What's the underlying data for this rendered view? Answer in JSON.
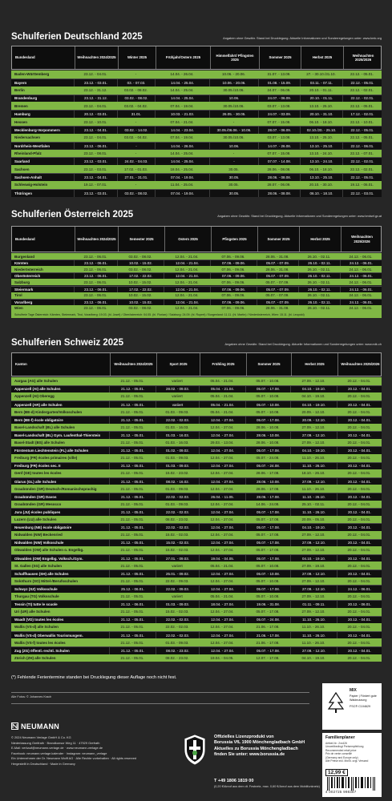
{
  "germany": {
    "title": "Schulferien Deutschland 2025",
    "note": "Angaben ohne Gewähr. Stand bei Drucklegung. Aktuelle Informationen und Sonderregelungen unter: www.kmk.org",
    "columns": [
      "Bundesland",
      "Weihnachten 2024/2025",
      "Winter 2025",
      "Frühjahr/Ostern 2025",
      "Himmelfahrt/ Pfingsten 2025",
      "Sommer 2025",
      "Herbst 2025",
      "Weihnachten 2025/2026"
    ],
    "rows": [
      [
        "Baden-Württemberg",
        "23.12. - 04.01.",
        "-",
        "14.04. - 26.04.",
        "10.06. - 20.06.",
        "31.07. - 13.09.",
        "27. - 30.10./31.10.",
        "22.12. - 05.01."
      ],
      [
        "Bayern",
        "23.12. - 03.01.",
        "03. - 07.03.",
        "14.04. - 25.04.",
        "10.06. - 20.06.",
        "01.08. - 15.09.",
        "03.11. - 07.11.",
        "22.12. - 05.01."
      ],
      [
        "Berlin",
        "23.12. - 31.12.",
        "03.02. - 08.02.",
        "14.04. - 25.04.",
        "30.05./10.06.",
        "24.07. - 06.09.",
        "20.10. - 01.11.",
        "22.12. - 02.01."
      ],
      [
        "Brandenburg",
        "23.12. - 31.12.",
        "03.02. - 08.02.",
        "14.04. - 25.04.",
        "10.06.",
        "24.07. - 06.09.",
        "20.10. - 01.11.",
        "22.12. - 02.01."
      ],
      [
        "Bremen",
        "23.12. - 04.01.",
        "03.02. - 04.02.",
        "07.04. - 19.04.",
        "30.05./10.06.",
        "03.07. - 13.08.",
        "13.10. - 25.10.",
        "22.12. - 05.01."
      ],
      [
        "Hamburg",
        "20.12. - 03.01.",
        "31.01.",
        "10.03. - 21.03.",
        "26.05. - 30.05.",
        "24.07. - 03.09.",
        "20.10. - 31.10.",
        "17.12. - 02.01."
      ],
      [
        "Hessen",
        "23.12. - 10.01.",
        "-",
        "07.04. - 21.04.",
        "-",
        "07.07. - 15.08.",
        "06.10. - 18.10.",
        "22.12. - 10.01."
      ],
      [
        "Mecklenburg-Vorpommern",
        "23.12. - 04.01.",
        "03.02. - 14.02.",
        "14.04. - 23.04.",
        "30.05./06.06. - 10.06.",
        "28.07. - 06.09.",
        "02.10./20. - 25.10.",
        "22.12. - 05.01."
      ],
      [
        "Niedersachsen",
        "23.12. - 04.01.",
        "03.02. - 04.02.",
        "07.04. - 19.04.",
        "30.05./10.06.",
        "03.07. - 13.08.",
        "13.10. - 25.10.",
        "22.12. - 05.01."
      ],
      [
        "Nordrhein-Westfalen",
        "23.12. - 06.01.",
        "-",
        "14.04. - 26.04.",
        "10.06.",
        "14.07. - 26.08.",
        "13.10. - 25.10.",
        "22.12. - 06.01."
      ],
      [
        "Rheinland-Pfalz",
        "23.12. - 08.01.",
        "-",
        "14.04. - 25.04.",
        "-",
        "07.07. - 15.08.",
        "13.10. - 24.10.",
        "22.12. - 07.01."
      ],
      [
        "Saarland",
        "23.12. - 03.01.",
        "24.02. - 04.03.",
        "14.04. - 25.04.",
        "-",
        "07.07. - 14.08.",
        "13.10. - 24.10.",
        "22.12. - 02.01."
      ],
      [
        "Sachsen",
        "23.12. - 03.01.",
        "17.02. - 01.03.",
        "18.04. - 25.04.",
        "30.05.",
        "28.06. - 08.08.",
        "06.10. - 18.10.",
        "22.12. - 02.01."
      ],
      [
        "Sachsen-Anhalt",
        "23.12. - 04.01.",
        "27.01. - 31.01.",
        "07.04. - 19.04.",
        "30.05.",
        "28.06. - 08.08.",
        "13.10. - 25.10.",
        "22.12. - 05.01."
      ],
      [
        "Schleswig-Holstein",
        "19.12. - 07.01.",
        "-",
        "11.04. - 25.04.",
        "30.05.",
        "28.07. - 06.09.",
        "20.10. - 30.10.",
        "19.12. - 06.01."
      ],
      [
        "Thüringen",
        "23.12. - 03.01.",
        "03.02. - 08.02.",
        "07.04. - 19.04.",
        "30.05.",
        "28.06. - 08.08.",
        "06.10. - 18.10.",
        "22.12. - 03.01."
      ]
    ]
  },
  "austria": {
    "title": "Schulferien Österreich 2025",
    "note": "Angaben ohne Gewähr. Stand bei Drucklegung. Aktuelle Informationen und Sonderregelungen unter: www.bmbwf.gv.at",
    "columns": [
      "Bundesland",
      "Weihnachten 2024/2025",
      "Semester 2025",
      "Ostern 2025",
      "Pfingsten 2025",
      "Sommer 2025",
      "Herbst 2025",
      "Weihnachten 2025/2026"
    ],
    "rows": [
      [
        "Burgenland",
        "23.12. - 06.01.",
        "03.02. - 08.02.",
        "12.04. - 21.04.",
        "07.06. - 09.06.",
        "28.06. - 31.08.",
        "26.10. - 02.11.",
        "24.12. - 06.01."
      ],
      [
        "Kärnten",
        "23.12. - 06.01.",
        "10.02. - 15.02.",
        "12.04. - 21.04.",
        "07.06. - 09.06.",
        "05.07. - 07.09.",
        "26.10. - 02.11.",
        "24.12. - 06.01."
      ],
      [
        "Niederösterreich",
        "23.12. - 06.01.",
        "03.02. - 08.02.",
        "12.04. - 21.04.",
        "07.06. - 09.06.",
        "28.06. - 31.08.",
        "26.10. - 02.11.",
        "24.12. - 06.01."
      ],
      [
        "Oberösterreich",
        "23.12. - 06.01.",
        "17.02. - 22.02.",
        "12.04. - 21.04.",
        "07.06. - 09.06.",
        "05.07. - 07.09.",
        "26.10. - 02.11.",
        "24.12. - 06.01."
      ],
      [
        "Salzburg",
        "23.12. - 06.01.",
        "10.02. - 15.02.",
        "12.04. - 21.04.",
        "07.06. - 09.06.",
        "05.07. - 07.09.",
        "26.10. - 02.11.",
        "24.12. - 06.01."
      ],
      [
        "Steiermark",
        "23.12. - 06.01.",
        "17.02. - 22.02.",
        "12.04. - 21.04.",
        "07.06. - 09.06.",
        "05.07. - 07.09.",
        "26.10. - 02.11.",
        "24.12. - 06.01."
      ],
      [
        "Tirol",
        "23.12. - 06.01.",
        "10.02. - 15.02.",
        "12.04. - 21.04.",
        "07.06. - 09.06.",
        "05.07. - 07.09.",
        "26.10. - 02.11.",
        "24.12. - 06.01."
      ],
      [
        "Vorarlberg",
        "23.12. - 06.01.",
        "10.02. - 15.02.",
        "12.04. - 21.04.",
        "07.06. - 09.06.",
        "05.07. - 07.09.",
        "26.10. - 02.11.",
        "24.12. - 06.01."
      ],
      [
        "Wien",
        "23.12. - 06.01.",
        "03.02. - 08.02.",
        "12.04. - 21.04.",
        "07.06. - 09.06.",
        "28.06. - 31.08.",
        "26.10. - 02.11.",
        "24.12. - 06.01."
      ]
    ],
    "holidays_note": "Schulfreie Tage Österreich: Kärnten, Steiermark, Tirol, Vorarlberg: 19.03. (hl. Josef) / Oberösterreich: 04.05. (hl. Florian) / Salzburg: 24.09. (hl. Rupert) / Burgenland: 11.11. (hl. Martin) / Niederösterreich, Wien: 15.11. (hl. Leopold)"
  },
  "switzerland": {
    "title": "Schulferien Schweiz 2025",
    "note": "Angaben ohne Gewähr. Stand bei Drucklegung. Aktuelle Informationen und Sonderregelungen unter: www.edk.ch",
    "columns": [
      "Kanton",
      "Weihnachten 2024/2025",
      "Sport 2025",
      "Frühling 2025",
      "Sommer 2025",
      "Herbst 2025",
      "Weihnachten 2025/2026"
    ],
    "rows": [
      [
        "Aargau (AG) alle Schulen",
        "21.12. - 05.01.",
        "variiert",
        "05.04. - 21.04.",
        "05.07. - 10.08.",
        "27.09. - 12.10.",
        "20.12. - 04.01."
      ],
      [
        "Appenzell (AI) alle Schulen",
        "21.12. - 05.01.",
        "28.02. - 09.03.",
        "05.04. - 21.04.",
        "05.07. - 17.08.",
        "04.10. - 19.10.",
        "20.12. - 04.01."
      ],
      [
        "Appenzell (AI) Oberegg",
        "21.12. - 05.01.",
        "variiert",
        "05.04. - 21.04.",
        "05.07. - 10.08.",
        "04.10. - 19.10.",
        "20.12. - 04.01."
      ],
      [
        "Appenzell (AR) alle Schulen",
        "21.12. - 05.01.",
        "variiert",
        "05.04. - 21.04.",
        "05.07. - 10.08.",
        "04.10. - 19.10.",
        "20.12. - 04.01."
      ],
      [
        "Bern (BE-d) Kindergarten/Volksschulen",
        "21.12. - 05.01.",
        "01.03. - 09.03.",
        "05.04. - 21.04.",
        "05.07. - 10.08.",
        "20.09. - 12.10.",
        "20.12. - 04.01."
      ],
      [
        "Bern (BE-f) école obligatoire",
        "21.12. - 05.01.",
        "22.02. - 02.03.",
        "12.04. - 27.04.",
        "05.07. - 17.08.",
        "20.09. - 12.10.",
        "20.12. - 04.01."
      ],
      [
        "Basel-Landschaft (BL) alle Schulen",
        "21.12. - 05.01.",
        "01.03. - 16.03.",
        "12.04. - 27.04.",
        "28.06. - 10.08.",
        "27.09. - 12.10.",
        "20.12. - 04.01."
      ],
      [
        "Basel-Landschaft (BL) Gym. Laufenthal-Thierstein",
        "21.12. - 05.01.",
        "01.03. - 16.03.",
        "12.04. - 27.04.",
        "28.06. - 10.08.",
        "27.09. - 12.10.",
        "20.12. - 04.01."
      ],
      [
        "Basel-Stadt (BS) alle Schulen",
        "21.12. - 05.01.",
        "01.03. - 16.03.",
        "29.03. - 13.04.",
        "28.06. - 10.08.",
        "27.09. - 12.10.",
        "20.12. - 04.01."
      ],
      [
        "Fürstentum Liechtenstein (FL) alle Schulen",
        "21.12. - 05.01.",
        "01.02. - 09.02.",
        "12.04. - 27.04.",
        "05.07. - 17.08.",
        "04.10. - 19.10.",
        "20.12. - 04.01."
      ],
      [
        "Freiburg (FR) écoles primaires (ville)",
        "21.12. - 05.01.",
        "01.03. - 09.03.",
        "12.04. - 27.04.",
        "05.07. - 24.08.",
        "11.10. - 26.10.",
        "20.12. - 04.01."
      ],
      [
        "Freiburg (FR) écoles sec. II",
        "21.12. - 05.01.",
        "01.03. - 09.03.",
        "12.04. - 27.04.",
        "05.07. - 24.08.",
        "11.10. - 26.10.",
        "20.12. - 04.01."
      ],
      [
        "Genf (GE) toutes les écoles",
        "21.12. - 05.01.",
        "15.02. - 23.02.",
        "12.04. - 27.04.",
        "28.06. - 17.08.",
        "18.10. - 26.10.",
        "20.12. - 04.01."
      ],
      [
        "Glarus (GL) alle Schulen",
        "21.12. - 05.01.",
        "08.02. - 16.02.",
        "12.04. - 27.04.",
        "28.06. - 10.08.",
        "27.09. - 12.10.",
        "20.12. - 04.01."
      ],
      [
        "Graubünden (GR) Deutsch-/Romanischsprachig",
        "21.12. - 05.01.",
        "01.03. - 09.03.",
        "12.04. - 27.04.",
        "28.06. - 17.08.",
        "11.10. - 26.10.",
        "20.12. - 04.01."
      ],
      [
        "Graubünden (GR) Davos",
        "21.12. - 05.01.",
        "22.02. - 02.03.",
        "26.04. - 11.05.",
        "28.06. - 17.08.",
        "11.10. - 26.10.",
        "20.12. - 04.01."
      ],
      [
        "Graubünden (GR) Mesocco",
        "21.12. - 05.01.",
        "01.03. - 09.03.",
        "12.04. - 27.04.",
        "14.06. - 24.08.",
        "25.10. - 02.11.",
        "20.12. - 04.01."
      ],
      [
        "Jura (JU) écoles publiques",
        "21.12. - 05.01.",
        "22.02. - 02.03.",
        "12.04. - 27.04.",
        "05.07. - 17.08.",
        "11.10. - 26.10.",
        "20.12. - 04.01."
      ],
      [
        "Luzern (LU) alle Schulen",
        "21.12. - 05.01.",
        "08.02. - 23.02.",
        "12.04. - 27.04.",
        "05.07. - 17.08.",
        "20.09. - 05.10.",
        "20.12. - 04.01."
      ],
      [
        "Neuenburg (NE) école obligatoire",
        "21.12. - 05.01.",
        "22.02. - 02.03.",
        "12.04. - 27.04.",
        "05.07. - 17.08.",
        "04.10. - 19.10.",
        "20.12. - 04.01."
      ],
      [
        "Nidwalden (NW) Beckenried",
        "21.12. - 05.01.",
        "15.02. - 02.03.",
        "12.04. - 27.04.",
        "05.07. - 17.08.",
        "27.09. - 12.10.",
        "20.12. - 04.01."
      ],
      [
        "Nidwalden (NW) Volksschule",
        "21.12. - 05.01.",
        "15.02. - 02.03.",
        "12.04. - 27.04.",
        "05.07. - 17.08.",
        "27.09. - 12.10.",
        "20.12. - 04.01."
      ],
      [
        "Obwalden (OW) alle Schulen o. Engelbg.",
        "21.12. - 05.01.",
        "15.02. - 02.03.",
        "12.04. - 27.04.",
        "05.07. - 17.08.",
        "27.09. - 12.10.",
        "20.12. - 04.01."
      ],
      [
        "Obwalden (OW) Engelbg. Volksch./Gym.",
        "21.12. - 05.01.",
        "27.01. - 09.03.",
        "19.04. - 04.05.",
        "05.07. - 17.08.",
        "04.10. - 19.10.",
        "20.12. - 04.01."
      ],
      [
        "St. Gallen (SG) alle Schulen",
        "21.12. - 05.01.",
        "variiert",
        "05.04. - 21.04.",
        "05.07. - 10.08.",
        "27.09. - 19.10.",
        "20.12. - 04.01."
      ],
      [
        "Schaffhausen (SH) alle Schulen",
        "21.12. - 05.01.",
        "25.01. - 09.02.",
        "12.04. - 27.04.",
        "05.07. - 10.08.",
        "27.09. - 12.10.",
        "20.12. - 04.01."
      ],
      [
        "Solothurn (SO) Mittel-/Berufsschulen",
        "21.12. - 05.01.",
        "22.02. - 09.03.",
        "12.04. - 27.04.",
        "05.07. - 10.08.",
        "27.09. - 12.10.",
        "20.12. - 04.01."
      ],
      [
        "Schwyz (SZ) Volksschule",
        "25.12. - 06.01.",
        "22.02. - 09.03.",
        "12.04. - 27.04.",
        "05.07. - 17.08.",
        "27.09. - 12.10.",
        "24.12. - 06.01."
      ],
      [
        "Thurgau (TG) Volksschule",
        "21.12. - 05.01.",
        "variiert",
        "05.04. - 21.04.",
        "05.07. - 10.08.",
        "27.09. - 12.10.",
        "20.12. - 04.01."
      ],
      [
        "Tessin (TI) tutte le scuole",
        "21.12. - 06.01.",
        "01.03. - 09.03.",
        "18.04. - 27.04.",
        "19.06. - 31.08.",
        "01.11. - 09.11.",
        "20.12. - 06.01."
      ],
      [
        "Uri (UR) alle Schulen",
        "21.12. - 05.01.",
        "15.02. - 02.03.",
        "12.04. - 27.04.",
        "05.07. - 17.08.",
        "27.09. - 12.10.",
        "20.12. - 04.01."
      ],
      [
        "Waadt (VD) toutes les écoles",
        "21.12. - 05.01.",
        "22.02. - 02.03.",
        "12.04. - 27.04.",
        "05.07. - 24.08.",
        "11.10. - 26.10.",
        "20.12. - 04.01."
      ],
      [
        "Wallis (VS-d) alle Schulen",
        "21.12. - 05.01.",
        "22.02. - 02.03.",
        "12.04. - 27.04.",
        "21.06. - 17.08.",
        "11.10. - 26.10.",
        "20.12. - 04.01."
      ],
      [
        "Wallis (VS-d) Oberwallis Tourismusgem.",
        "21.12. - 05.01.",
        "22.02. - 02.03.",
        "12.04. - 27.04.",
        "21.06. - 17.08.",
        "11.10. - 26.10.",
        "20.12. - 04.01."
      ],
      [
        "Wallis (VS-f) toutes les écoles",
        "21.12. - 05.01.",
        "01.03. - 09.03.",
        "12.04. - 27.04.",
        "21.06. - 17.08.",
        "11.10. - 26.10.",
        "20.12. - 04.01."
      ],
      [
        "Zug (ZG) öffentl.-rechtl. Schulen",
        "21.12. - 05.01.",
        "08.02. - 23.02.",
        "12.04. - 27.04.",
        "05.07. - 17.08.",
        "27.09. - 12.10.",
        "20.12. - 04.01."
      ],
      [
        "Zürich (ZH) alle Schulen",
        "21.12. - 05.01.",
        "08.02. - 23.02.",
        "19.04. - 04.05.",
        "12.07. - 17.08.",
        "04.10. - 19.10.",
        "20.12. - 04.01."
      ]
    ]
  },
  "footnote": "(*) Fehlende Ferientermine standen bei Drucklegung dieser Auflage noch nicht fest.",
  "photo_credit": "Alle Fotos: © Johannes Krach",
  "publisher": {
    "logo": "NEUMANN",
    "lines": [
      "© 2024 Neumann Verlage GmbH & Co. KG",
      "Niederlassung Greifrath · Brandkonsor Weg 11 · 47929 Grefrath",
      "E-Mail: verkauf@neumann-verlage.de · www.neumann-verlage.de",
      "Facebook: neumann.verlage.kalender · Instagram: neumann_verlage",
      "Ein Unternehmen der Dr. Neumann Wolff AG · Alle Rechte vorbehalten · All rights reserved",
      "Hergestellt in Deutschland · Made in Germany"
    ]
  },
  "license": {
    "lines": [
      "Offizielles Lizenzprodukt von",
      "Borussia VfL 1900 Mönchengladbach GmbH",
      "Aktuelles zu Borussia Mönchengladbach",
      "finden Sie unter: www.borussia.de"
    ],
    "phone": "T +49 1806 1819 00",
    "phone_note": "(0,20 €/Anruf aus dem dt. Festnetz, max. 0,60 €/Anruf aus dem Mobilfunknetz)"
  },
  "fsc": {
    "label": "MIX",
    "text": "Papier | Fördert gute Waldnutzung",
    "code": "FSC® C104629"
  },
  "product": {
    "name": "Familienplaner",
    "lines": [
      "Artikel-Nr.: 2xx426",
      "Umweltbedingt Preisempfehlung",
      "Recommended retail price",
      "Prix de vente conseillé",
      "(Germany and Europe only)",
      "Alle Preise inkl. MwSt. zzgl. Versand"
    ],
    "price": "12,99 €",
    "barcode": "4 002725 998387"
  }
}
